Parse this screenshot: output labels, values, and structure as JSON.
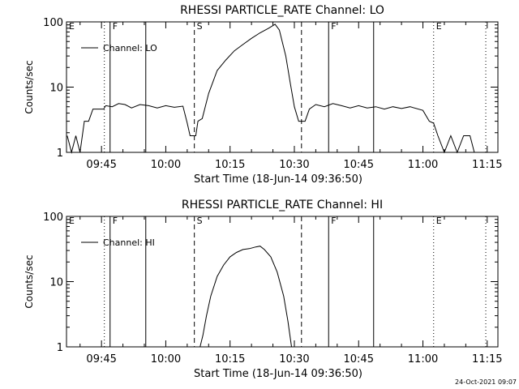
{
  "footer_date": "24-Oct-2021 09:07",
  "chart_data": [
    {
      "type": "line",
      "title": "RHESSI PARTICLE_RATE Channel: LO",
      "xlabel": "Start Time (18-Jun-14 09:36:50)",
      "ylabel": "Counts/sec",
      "yscale": "log",
      "ylim": [
        1,
        100
      ],
      "xlim": [
        "09:36:50",
        "11:17:30"
      ],
      "x_ticks": [
        "09:45",
        "10:00",
        "10:15",
        "10:30",
        "10:45",
        "11:00",
        "11:15"
      ],
      "y_ticks": [
        "1",
        "10",
        "100"
      ],
      "legend": {
        "position": "top-left",
        "entries": [
          "Channel: LO"
        ]
      },
      "grid": false,
      "markers": [
        {
          "time": "09:36:50",
          "label": "E",
          "style": "dotted"
        },
        {
          "time": "09:45:40",
          "label": "",
          "style": "dotted"
        },
        {
          "time": "09:47:00",
          "label": "F",
          "style": "solid"
        },
        {
          "time": "09:55:20",
          "label": "",
          "style": "solid"
        },
        {
          "time": "10:06:40",
          "label": "S",
          "style": "dashed"
        },
        {
          "time": "10:31:40",
          "label": "",
          "style": "dashed"
        },
        {
          "time": "10:38:00",
          "label": "F",
          "style": "solid"
        },
        {
          "time": "10:48:30",
          "label": "",
          "style": "solid"
        },
        {
          "time": "11:02:30",
          "label": "E",
          "style": "dotted"
        },
        {
          "time": "11:14:40",
          "label": "",
          "style": "dotted"
        }
      ],
      "series": [
        {
          "name": "Channel: LO",
          "points": [
            [
              "09:37:00",
              1.8
            ],
            [
              "09:38:00",
              1.0
            ],
            [
              "09:39:00",
              1.8
            ],
            [
              "09:40:00",
              1.0
            ],
            [
              "09:41:00",
              3.0
            ],
            [
              "09:42:00",
              3.0
            ],
            [
              "09:43:00",
              4.6
            ],
            [
              "09:45:30",
              4.6
            ],
            [
              "09:46:00",
              5.2
            ],
            [
              "09:47:30",
              5.0
            ],
            [
              "09:49:00",
              5.6
            ],
            [
              "09:50:30",
              5.4
            ],
            [
              "09:52:00",
              4.8
            ],
            [
              "09:54:00",
              5.4
            ],
            [
              "09:56:00",
              5.2
            ],
            [
              "09:58:00",
              4.8
            ],
            [
              "10:00:00",
              5.2
            ],
            [
              "10:02:00",
              4.9
            ],
            [
              "10:04:00",
              5.1
            ],
            [
              "10:05:00",
              2.8
            ],
            [
              "10:05:40",
              1.8
            ],
            [
              "10:07:00",
              1.8
            ],
            [
              "10:07:30",
              3.0
            ],
            [
              "10:08:30",
              3.3
            ],
            [
              "10:10:00",
              8.0
            ],
            [
              "10:12:00",
              18.0
            ],
            [
              "10:14:00",
              26.0
            ],
            [
              "10:16:00",
              36.0
            ],
            [
              "10:18:00",
              45.0
            ],
            [
              "10:20:00",
              56.0
            ],
            [
              "10:22:00",
              68.0
            ],
            [
              "10:24:00",
              80.0
            ],
            [
              "10:25:30",
              92.0
            ],
            [
              "10:26:30",
              75.0
            ],
            [
              "10:28:00",
              30.0
            ],
            [
              "10:29:00",
              12.0
            ],
            [
              "10:30:00",
              5.0
            ],
            [
              "10:31:00",
              3.0
            ],
            [
              "10:32:30",
              3.0
            ],
            [
              "10:33:30",
              4.6
            ],
            [
              "10:35:00",
              5.4
            ],
            [
              "10:37:00",
              5.0
            ],
            [
              "10:39:00",
              5.6
            ],
            [
              "10:41:00",
              5.2
            ],
            [
              "10:43:00",
              4.8
            ],
            [
              "10:45:00",
              5.2
            ],
            [
              "10:47:00",
              4.8
            ],
            [
              "10:49:00",
              5.0
            ],
            [
              "10:51:00",
              4.6
            ],
            [
              "10:53:00",
              5.0
            ],
            [
              "10:55:00",
              4.7
            ],
            [
              "10:57:00",
              5.0
            ],
            [
              "11:00:00",
              4.4
            ],
            [
              "11:01:30",
              3.0
            ],
            [
              "11:02:30",
              2.8
            ],
            [
              "11:03:30",
              1.8
            ],
            [
              "11:05:00",
              1.0
            ],
            [
              "11:06:30",
              1.8
            ],
            [
              "11:08:00",
              1.0
            ],
            [
              "11:09:30",
              1.8
            ],
            [
              "11:11:00",
              1.8
            ],
            [
              "11:12:00",
              1.0
            ]
          ]
        }
      ]
    },
    {
      "type": "line",
      "title": "RHESSI PARTICLE_RATE Channel: HI",
      "xlabel": "Start Time (18-Jun-14 09:36:50)",
      "ylabel": "Counts/sec",
      "yscale": "log",
      "ylim": [
        1,
        100
      ],
      "xlim": [
        "09:36:50",
        "11:17:30"
      ],
      "x_ticks": [
        "09:45",
        "10:00",
        "10:15",
        "10:30",
        "10:45",
        "11:00",
        "11:15"
      ],
      "y_ticks": [
        "1",
        "10",
        "100"
      ],
      "legend": {
        "position": "top-left",
        "entries": [
          "Channel: HI"
        ]
      },
      "grid": false,
      "markers": [
        {
          "time": "09:36:50",
          "label": "E",
          "style": "dotted"
        },
        {
          "time": "09:45:40",
          "label": "",
          "style": "dotted"
        },
        {
          "time": "09:47:00",
          "label": "F",
          "style": "solid"
        },
        {
          "time": "09:55:20",
          "label": "",
          "style": "solid"
        },
        {
          "time": "10:06:40",
          "label": "S",
          "style": "dashed"
        },
        {
          "time": "10:31:40",
          "label": "",
          "style": "dashed"
        },
        {
          "time": "10:38:00",
          "label": "F",
          "style": "solid"
        },
        {
          "time": "10:48:30",
          "label": "",
          "style": "solid"
        },
        {
          "time": "11:02:30",
          "label": "E",
          "style": "dotted"
        },
        {
          "time": "11:14:40",
          "label": "",
          "style": "dotted"
        }
      ],
      "series": [
        {
          "name": "Channel: HI",
          "points": [
            [
              "10:08:00",
              1.0
            ],
            [
              "10:08:40",
              1.5
            ],
            [
              "10:09:30",
              3.0
            ],
            [
              "10:10:30",
              6.0
            ],
            [
              "10:12:00",
              12.0
            ],
            [
              "10:13:30",
              18.0
            ],
            [
              "10:15:00",
              24.0
            ],
            [
              "10:16:30",
              28.0
            ],
            [
              "10:18:00",
              31.0
            ],
            [
              "10:19:30",
              32.0
            ],
            [
              "10:21:00",
              34.0
            ],
            [
              "10:22:00",
              35.0
            ],
            [
              "10:23:00",
              31.0
            ],
            [
              "10:24:30",
              24.0
            ],
            [
              "10:26:00",
              14.0
            ],
            [
              "10:27:30",
              6.0
            ],
            [
              "10:28:30",
              2.5
            ],
            [
              "10:29:20",
              1.0
            ]
          ]
        }
      ]
    }
  ]
}
